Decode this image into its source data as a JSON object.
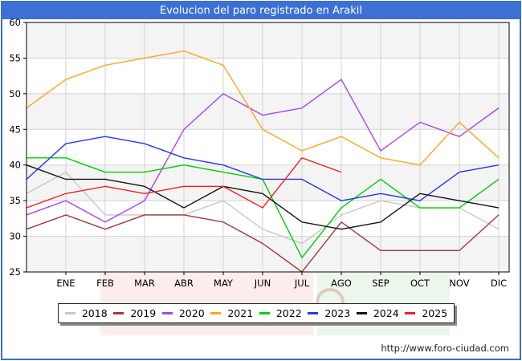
{
  "title": "Evolucion del paro registrado en Arakil",
  "footer": {
    "url_label": "http://www.foro-ciudad.com"
  },
  "colors": {
    "frame_blue": "#3c70d4",
    "grid": "#d2d2d2",
    "band": "#f4f4f4",
    "plot_border": "#000000",
    "legend_shadow": "#8a8a8a"
  },
  "chart_data": {
    "type": "line",
    "title": "Evolucion del paro registrado en Arakil",
    "x_tick_labels": [
      "ENE",
      "FEB",
      "MAR",
      "ABR",
      "MAY",
      "JUN",
      "JUL",
      "AGO",
      "SEP",
      "OCT",
      "NOV",
      "DIC"
    ],
    "y_ticks": [
      60,
      55,
      50,
      45,
      40,
      35,
      30,
      25
    ],
    "ylim": [
      25,
      60
    ],
    "grid": true,
    "zebra_bands": true,
    "legend_position": "bottom",
    "start_point_on_left_axis": "previous December value",
    "series": [
      {
        "name": "2018",
        "color": "#c8c8c8",
        "values": [
          36,
          39,
          33,
          33,
          33,
          35,
          31,
          29,
          33,
          35,
          34,
          34,
          31
        ]
      },
      {
        "name": "2019",
        "color": "#a03a3a",
        "values": [
          31,
          33,
          31,
          33,
          33,
          32,
          29,
          25,
          32,
          28,
          28,
          28,
          33
        ]
      },
      {
        "name": "2020",
        "color": "#a845f0",
        "values": [
          33,
          35,
          32,
          35,
          45,
          50,
          47,
          48,
          52,
          42,
          46,
          44,
          48
        ]
      },
      {
        "name": "2021",
        "color": "#ffa520",
        "values": [
          48,
          52,
          54,
          55,
          56,
          54,
          45,
          42,
          44,
          41,
          40,
          46,
          41
        ]
      },
      {
        "name": "2022",
        "color": "#00cf00",
        "values": [
          41,
          41,
          39,
          39,
          40,
          39,
          38,
          27,
          34,
          38,
          34,
          34,
          38
        ]
      },
      {
        "name": "2023",
        "color": "#2636f0",
        "values": [
          38,
          43,
          44,
          43,
          41,
          40,
          38,
          38,
          35,
          36,
          35,
          39,
          40
        ]
      },
      {
        "name": "2024",
        "color": "#141414",
        "values": [
          40,
          38,
          38,
          37,
          34,
          37,
          36,
          32,
          31,
          32,
          36,
          35,
          34
        ]
      },
      {
        "name": "2025",
        "color": "#f22020",
        "values": [
          34,
          36,
          37,
          36,
          37,
          37,
          34,
          41,
          39
        ]
      }
    ]
  }
}
